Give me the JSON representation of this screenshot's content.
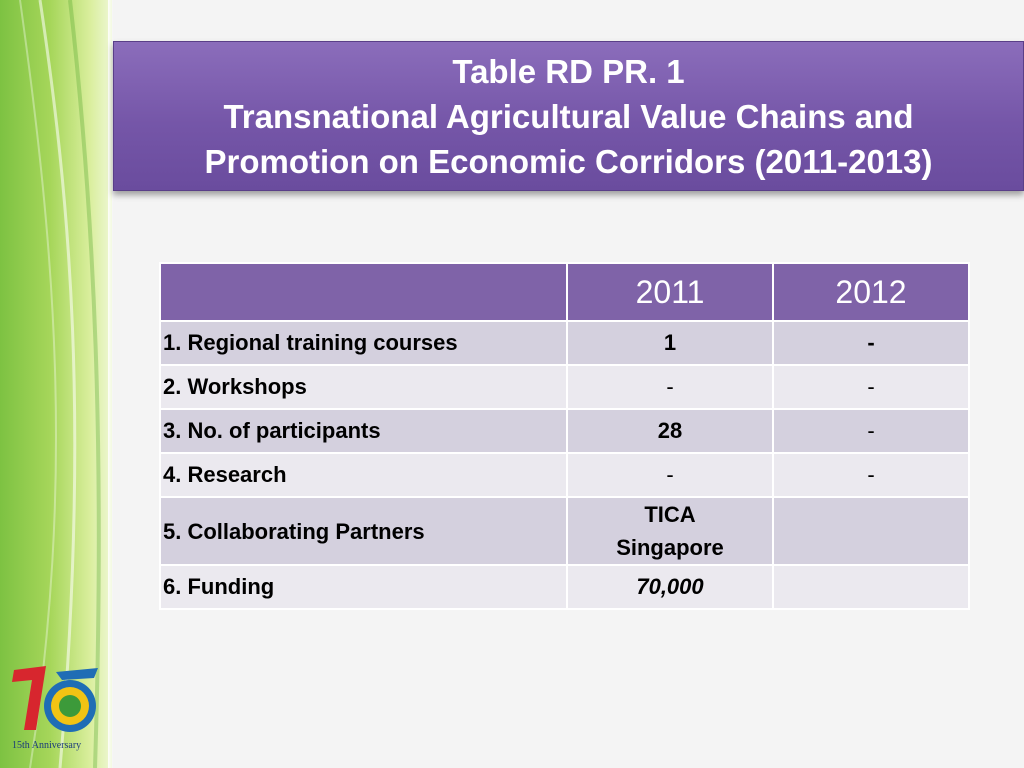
{
  "title": {
    "line1": "Table RD PR. 1",
    "line2": "Transnational Agricultural Value Chains and",
    "line3": "Promotion on Economic Corridors (2011-2013)"
  },
  "table": {
    "headers": [
      "",
      "2011",
      "2012"
    ],
    "rows": [
      {
        "label": "1. Regional training courses",
        "v2011": "1",
        "v2012": "-"
      },
      {
        "label": "2. Workshops",
        "v2011": "-",
        "v2012": "-"
      },
      {
        "label": "3. No. of participants",
        "v2011": "28",
        "v2012": "-"
      },
      {
        "label": "4. Research",
        "v2011": "-",
        "v2012": "-"
      },
      {
        "label": "5. Collaborating Partners",
        "v2011_line1": "TICA",
        "v2011_line2": "Singapore",
        "v2012": ""
      },
      {
        "label": "6. Funding",
        "v2011": "70,000",
        "v2012": ""
      }
    ]
  },
  "footer": {
    "logo_text": "15th Anniversary"
  },
  "colors": {
    "title_bg": "#7556a8",
    "header_bg": "#7f63a8",
    "row_dark": "#d4d0de",
    "row_light": "#ebe9ef",
    "band_green": "#7dc242"
  }
}
